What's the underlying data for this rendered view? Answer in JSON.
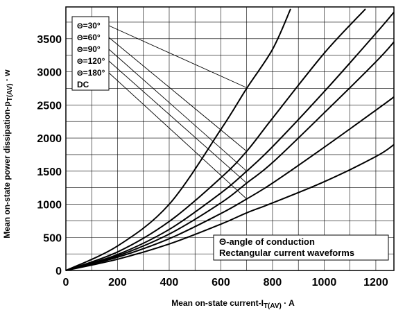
{
  "chart_data": {
    "type": "line",
    "xlabel": "Mean on-state current-I",
    "xlabel_sub": "T(AV)",
    "xlabel_unit": " · A",
    "ylabel": "Mean on-state power dissipation-p",
    "ylabel_sub": "T(AV)",
    "ylabel_unit": " · w",
    "xlim": [
      0,
      1270
    ],
    "ylim": [
      0,
      3980
    ],
    "x_ticks": [
      0,
      200,
      400,
      600,
      800,
      1000,
      1200
    ],
    "y_ticks": [
      0,
      500,
      1000,
      1500,
      2000,
      2500,
      3000,
      3500
    ],
    "grid": true,
    "legend_position": "top-left",
    "legend_symbol": "Θ",
    "series": [
      {
        "name": "Θ=30°",
        "points": [
          [
            0,
            0
          ],
          [
            200,
            370
          ],
          [
            400,
            1000
          ],
          [
            600,
            2130
          ],
          [
            700,
            2750
          ],
          [
            800,
            3340
          ],
          [
            870,
            3950
          ]
        ]
      },
      {
        "name": "Θ=60°",
        "points": [
          [
            0,
            0
          ],
          [
            200,
            280
          ],
          [
            400,
            740
          ],
          [
            600,
            1400
          ],
          [
            700,
            1800
          ],
          [
            800,
            2300
          ],
          [
            1000,
            3280
          ],
          [
            1160,
            3950
          ]
        ]
      },
      {
        "name": "Θ=90°",
        "points": [
          [
            0,
            0
          ],
          [
            200,
            240
          ],
          [
            400,
            620
          ],
          [
            600,
            1170
          ],
          [
            700,
            1500
          ],
          [
            800,
            1870
          ],
          [
            1000,
            2700
          ],
          [
            1200,
            3580
          ],
          [
            1270,
            3900
          ]
        ]
      },
      {
        "name": "Θ=120°",
        "points": [
          [
            0,
            0
          ],
          [
            200,
            220
          ],
          [
            400,
            550
          ],
          [
            600,
            1020
          ],
          [
            700,
            1320
          ],
          [
            800,
            1630
          ],
          [
            1000,
            2380
          ],
          [
            1200,
            3150
          ],
          [
            1270,
            3450
          ]
        ]
      },
      {
        "name": "Θ=180°",
        "points": [
          [
            0,
            0
          ],
          [
            200,
            200
          ],
          [
            400,
            480
          ],
          [
            600,
            860
          ],
          [
            700,
            1080
          ],
          [
            800,
            1320
          ],
          [
            1000,
            1860
          ],
          [
            1200,
            2420
          ],
          [
            1270,
            2620
          ]
        ]
      },
      {
        "name": "DC",
        "points": [
          [
            0,
            0
          ],
          [
            200,
            170
          ],
          [
            400,
            400
          ],
          [
            600,
            700
          ],
          [
            700,
            870
          ],
          [
            800,
            1020
          ],
          [
            1000,
            1340
          ],
          [
            1200,
            1720
          ],
          [
            1270,
            1900
          ]
        ]
      }
    ],
    "legend": [
      "Θ=30°",
      "Θ=60°",
      "Θ=90°",
      "Θ=120°",
      "Θ=180°",
      "DC"
    ],
    "leader_targets": [
      [
        700,
        2760
      ],
      [
        700,
        1800
      ],
      [
        700,
        1500
      ],
      [
        700,
        1320
      ],
      [
        700,
        1080
      ],
      [
        700,
        900
      ]
    ],
    "annotations": [
      "Θ-angle of conduction",
      "Rectangular current waveforms"
    ]
  }
}
